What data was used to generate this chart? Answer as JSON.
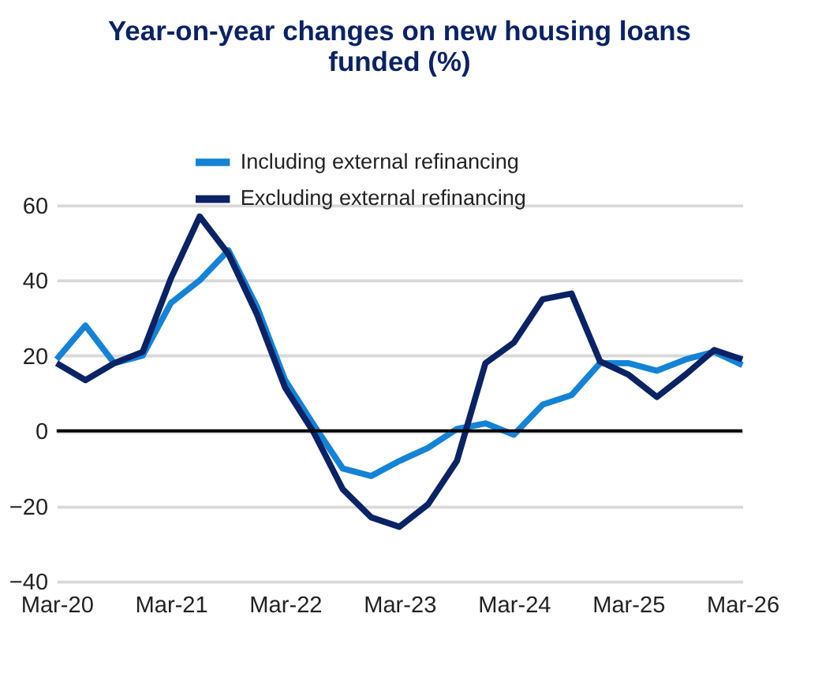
{
  "chart_data": {
    "type": "line",
    "title": "Year-on-year changes on new housing loans funded (%)",
    "x": [
      "2020-03",
      "2020-06",
      "2020-09",
      "2020-12",
      "2021-03",
      "2021-06",
      "2021-09",
      "2021-12",
      "2022-03",
      "2022-06",
      "2022-09",
      "2022-12",
      "2023-03",
      "2023-06",
      "2023-09",
      "2023-12",
      "2024-03",
      "2024-06",
      "2024-09",
      "2024-12",
      "2025-03",
      "2025-06",
      "2025-09",
      "2025-12",
      "2026-03"
    ],
    "series": [
      {
        "name": "Including external refinancing",
        "color": "#1483d6",
        "values": [
          19,
          28,
          18,
          20,
          34,
          40,
          48,
          33,
          13.5,
          1.5,
          -10,
          -12,
          -8,
          -4.5,
          0.5,
          2,
          -1,
          7,
          9.5,
          18,
          18,
          16,
          19,
          21,
          17.5
        ]
      },
      {
        "name": "Excluding external refinancing",
        "color": "#0b2265",
        "values": [
          18,
          13.5,
          18,
          21,
          40.5,
          57,
          47,
          31,
          11.5,
          -0.5,
          -15.5,
          -23,
          -25.5,
          -19.5,
          -8,
          18,
          23.5,
          35,
          36.5,
          18.5,
          15,
          9,
          15,
          21.5,
          19
        ]
      }
    ],
    "xlim": [
      "2020-03",
      "2026-03"
    ],
    "xticks": [
      {
        "value": "2020-03",
        "label": "Mar-20"
      },
      {
        "value": "2021-03",
        "label": "Mar-21"
      },
      {
        "value": "2022-03",
        "label": "Mar-22"
      },
      {
        "value": "2023-03",
        "label": "Mar-23"
      },
      {
        "value": "2024-03",
        "label": "Mar-24"
      },
      {
        "value": "2025-03",
        "label": "Mar-25"
      },
      {
        "value": "2026-03",
        "label": "Mar-26"
      }
    ],
    "ylim": [
      -40,
      60
    ],
    "yticks": [
      -40,
      -20,
      0,
      20,
      40,
      60
    ],
    "grid": "y",
    "legend": "top",
    "marker": "none",
    "line_style": "solid",
    "ref_lines": [
      {
        "axis": "y",
        "value": 0,
        "label": null,
        "color": "#000000"
      }
    ]
  }
}
